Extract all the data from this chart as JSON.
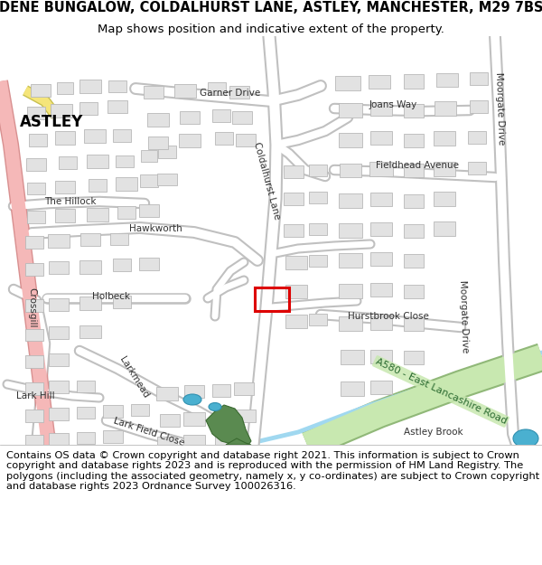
{
  "title": "DENE BUNGALOW, COLDALHURST LANE, ASTLEY, MANCHESTER, M29 7BS",
  "subtitle": "Map shows position and indicative extent of the property.",
  "footer": "Contains OS data © Crown copyright and database right 2021. This information is subject to Crown copyright and database rights 2023 and is reproduced with the permission of HM Land Registry. The polygons (including the associated geometry, namely x, y co-ordinates) are subject to Crown copyright and database rights 2023 Ordnance Survey 100026316.",
  "map_bg": "#f5f5f5",
  "title_fontsize": 10.5,
  "subtitle_fontsize": 9.5,
  "footer_fontsize": 8.2,
  "road_white": "#ffffff",
  "road_gray_outline": "#c8c8c8",
  "building_fill": "#e2e2e2",
  "building_outline": "#b8b8b8",
  "pink_road": "#f5b8b8",
  "yellow_road": "#f5e57a",
  "green_fill": "#5a8a50",
  "blue_water": "#80c8e0",
  "light_blue_brook": "#a0d8f0",
  "green_road_fill": "#c8e8b0",
  "green_road_outline": "#90b878",
  "property_red": "#dd0000",
  "text_dark": "#303030",
  "text_road_green": "#2a6a30"
}
